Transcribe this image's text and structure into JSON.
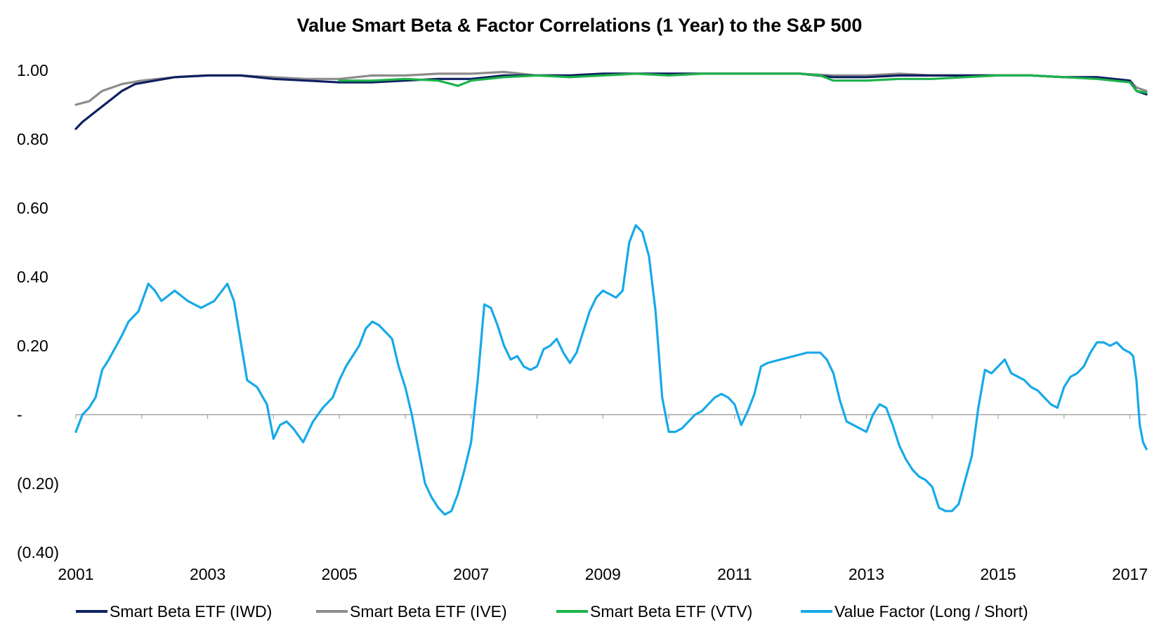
{
  "chart_data": {
    "type": "line",
    "title": "Value Smart Beta & Factor Correlations (1 Year) to the S&P 500",
    "xlabel": "",
    "ylabel": "",
    "xlim": [
      2001,
      2017.25
    ],
    "ylim": [
      -0.4,
      1.0
    ],
    "grid": false,
    "legend_position": "bottom",
    "x_ticks": [
      2001,
      2003,
      2005,
      2007,
      2009,
      2011,
      2013,
      2015,
      2017
    ],
    "x_tick_labels": [
      "2001",
      "2003",
      "2005",
      "2007",
      "2009",
      "2011",
      "2013",
      "2015",
      "2017"
    ],
    "y_ticks": [
      -0.4,
      -0.2,
      0,
      0.2,
      0.4,
      0.6,
      0.8,
      1.0
    ],
    "y_tick_labels": [
      "(0.40)",
      "(0.20)",
      "-",
      "0.20",
      "0.40",
      "0.60",
      "0.80",
      "1.00"
    ],
    "series": [
      {
        "name": "Smart Beta ETF (IWD)",
        "color": "#0d2060",
        "x": [
          2001.0,
          2001.1,
          2001.3,
          2001.5,
          2001.7,
          2001.9,
          2002.2,
          2002.5,
          2003.0,
          2003.5,
          2004.0,
          2004.5,
          2005.0,
          2005.5,
          2006.0,
          2006.5,
          2007.0,
          2007.5,
          2008.0,
          2008.5,
          2009.0,
          2009.5,
          2010.0,
          2010.5,
          2011.0,
          2011.5,
          2012.0,
          2012.5,
          2013.0,
          2013.5,
          2014.0,
          2014.5,
          2015.0,
          2015.5,
          2016.0,
          2016.5,
          2017.0,
          2017.1,
          2017.25
        ],
        "y": [
          0.83,
          0.85,
          0.88,
          0.91,
          0.94,
          0.96,
          0.97,
          0.98,
          0.985,
          0.985,
          0.975,
          0.97,
          0.965,
          0.965,
          0.97,
          0.975,
          0.975,
          0.985,
          0.985,
          0.985,
          0.99,
          0.99,
          0.99,
          0.99,
          0.99,
          0.99,
          0.99,
          0.98,
          0.98,
          0.985,
          0.985,
          0.985,
          0.985,
          0.985,
          0.98,
          0.98,
          0.97,
          0.94,
          0.93
        ]
      },
      {
        "name": "Smart Beta ETF (IVE)",
        "color": "#8c8c8c",
        "x": [
          2001.0,
          2001.2,
          2001.4,
          2001.7,
          2002.0,
          2002.5,
          2003.0,
          2003.5,
          2004.0,
          2004.5,
          2005.0,
          2005.5,
          2006.0,
          2006.5,
          2007.0,
          2007.5,
          2008.0,
          2008.5,
          2009.0,
          2009.5,
          2010.0,
          2010.5,
          2011.0,
          2011.5,
          2012.0,
          2012.5,
          2013.0,
          2013.5,
          2014.0,
          2014.5,
          2015.0,
          2015.5,
          2016.0,
          2016.5,
          2017.0,
          2017.1,
          2017.25
        ],
        "y": [
          0.9,
          0.91,
          0.94,
          0.96,
          0.97,
          0.98,
          0.985,
          0.985,
          0.98,
          0.975,
          0.975,
          0.985,
          0.985,
          0.99,
          0.99,
          0.995,
          0.985,
          0.985,
          0.99,
          0.99,
          0.99,
          0.99,
          0.99,
          0.99,
          0.99,
          0.985,
          0.985,
          0.99,
          0.985,
          0.985,
          0.985,
          0.985,
          0.98,
          0.98,
          0.97,
          0.95,
          0.94
        ]
      },
      {
        "name": "Smart Beta ETF (VTV)",
        "color": "#1db34a",
        "x": [
          2005.0,
          2005.5,
          2006.0,
          2006.5,
          2006.8,
          2007.0,
          2007.5,
          2008.0,
          2008.5,
          2009.0,
          2009.5,
          2010.0,
          2010.5,
          2011.0,
          2011.5,
          2012.0,
          2012.3,
          2012.5,
          2013.0,
          2013.5,
          2014.0,
          2014.5,
          2015.0,
          2015.5,
          2016.0,
          2016.5,
          2017.0,
          2017.1,
          2017.25
        ],
        "y": [
          0.97,
          0.97,
          0.975,
          0.97,
          0.955,
          0.97,
          0.98,
          0.985,
          0.98,
          0.985,
          0.99,
          0.985,
          0.99,
          0.99,
          0.99,
          0.99,
          0.985,
          0.97,
          0.97,
          0.975,
          0.975,
          0.98,
          0.985,
          0.985,
          0.98,
          0.975,
          0.965,
          0.94,
          0.935
        ]
      },
      {
        "name": "Value Factor (Long / Short)",
        "color": "#17a9e8",
        "x": [
          2001.0,
          2001.1,
          2001.2,
          2001.3,
          2001.4,
          2001.5,
          2001.7,
          2001.8,
          2001.95,
          2002.1,
          2002.2,
          2002.3,
          2002.5,
          2002.7,
          2002.9,
          2003.1,
          2003.3,
          2003.4,
          2003.6,
          2003.75,
          2003.9,
          2004.0,
          2004.1,
          2004.2,
          2004.3,
          2004.45,
          2004.6,
          2004.75,
          2004.9,
          2005.0,
          2005.1,
          2005.3,
          2005.4,
          2005.5,
          2005.6,
          2005.7,
          2005.8,
          2005.9,
          2006.0,
          2006.1,
          2006.2,
          2006.3,
          2006.4,
          2006.5,
          2006.6,
          2006.7,
          2006.8,
          2006.9,
          2007.0,
          2007.1,
          2007.2,
          2007.3,
          2007.4,
          2007.5,
          2007.6,
          2007.7,
          2007.8,
          2007.9,
          2008.0,
          2008.1,
          2008.2,
          2008.3,
          2008.4,
          2008.5,
          2008.6,
          2008.7,
          2008.8,
          2008.9,
          2009.0,
          2009.1,
          2009.2,
          2009.3,
          2009.4,
          2009.5,
          2009.6,
          2009.7,
          2009.8,
          2009.9,
          2010.0,
          2010.1,
          2010.2,
          2010.3,
          2010.4,
          2010.5,
          2010.6,
          2010.7,
          2010.8,
          2010.9,
          2011.0,
          2011.1,
          2011.2,
          2011.3,
          2011.4,
          2011.5,
          2011.7,
          2011.9,
          2012.1,
          2012.3,
          2012.4,
          2012.5,
          2012.6,
          2012.7,
          2012.8,
          2012.9,
          2013.0,
          2013.1,
          2013.2,
          2013.3,
          2013.4,
          2013.5,
          2013.6,
          2013.7,
          2013.8,
          2013.9,
          2014.0,
          2014.1,
          2014.2,
          2014.3,
          2014.4,
          2014.5,
          2014.6,
          2014.7,
          2014.8,
          2014.9,
          2015.0,
          2015.1,
          2015.2,
          2015.3,
          2015.4,
          2015.5,
          2015.6,
          2015.7,
          2015.8,
          2015.9,
          2016.0,
          2016.1,
          2016.2,
          2016.3,
          2016.4,
          2016.5,
          2016.6,
          2016.7,
          2016.8,
          2016.9,
          2017.0,
          2017.05,
          2017.1,
          2017.15,
          2017.2,
          2017.25
        ],
        "y": [
          -0.05,
          0.0,
          0.02,
          0.05,
          0.13,
          0.16,
          0.23,
          0.27,
          0.3,
          0.38,
          0.36,
          0.33,
          0.36,
          0.33,
          0.31,
          0.33,
          0.38,
          0.33,
          0.1,
          0.08,
          0.03,
          -0.07,
          -0.03,
          -0.02,
          -0.04,
          -0.08,
          -0.02,
          0.02,
          0.05,
          0.1,
          0.14,
          0.2,
          0.25,
          0.27,
          0.26,
          0.24,
          0.22,
          0.14,
          0.08,
          0.0,
          -0.1,
          -0.2,
          -0.24,
          -0.27,
          -0.29,
          -0.28,
          -0.23,
          -0.16,
          -0.08,
          0.1,
          0.32,
          0.31,
          0.26,
          0.2,
          0.16,
          0.17,
          0.14,
          0.13,
          0.14,
          0.19,
          0.2,
          0.22,
          0.18,
          0.15,
          0.18,
          0.24,
          0.3,
          0.34,
          0.36,
          0.35,
          0.34,
          0.36,
          0.5,
          0.55,
          0.53,
          0.46,
          0.3,
          0.05,
          -0.05,
          -0.05,
          -0.04,
          -0.02,
          0.0,
          0.01,
          0.03,
          0.05,
          0.06,
          0.05,
          0.03,
          -0.03,
          0.01,
          0.06,
          0.14,
          0.15,
          0.16,
          0.17,
          0.18,
          0.18,
          0.16,
          0.12,
          0.04,
          -0.02,
          -0.03,
          -0.04,
          -0.05,
          0.0,
          0.03,
          0.02,
          -0.03,
          -0.09,
          -0.13,
          -0.16,
          -0.18,
          -0.19,
          -0.21,
          -0.27,
          -0.28,
          -0.28,
          -0.26,
          -0.19,
          -0.12,
          0.02,
          0.13,
          0.12,
          0.14,
          0.16,
          0.12,
          0.11,
          0.1,
          0.08,
          0.07,
          0.05,
          0.03,
          0.02,
          0.08,
          0.11,
          0.12,
          0.14,
          0.18,
          0.21,
          0.21,
          0.2,
          0.21,
          0.19,
          0.18,
          0.17,
          0.1,
          -0.03,
          -0.08,
          -0.1
        ]
      }
    ]
  }
}
